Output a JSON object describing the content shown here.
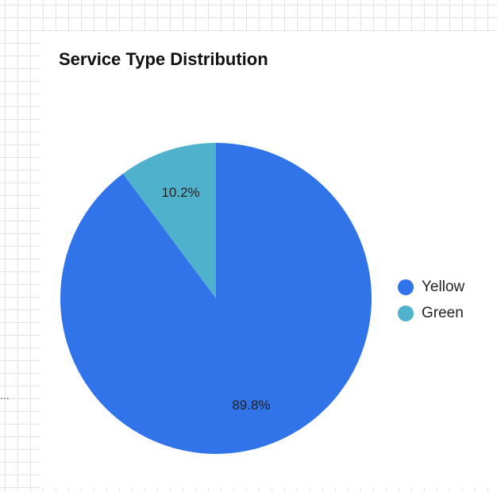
{
  "side_fragment": "...",
  "chart_data": {
    "type": "pie",
    "title": "Service Type Distribution",
    "categories": [
      "Yellow",
      "Green"
    ],
    "values": [
      89.8,
      10.2
    ],
    "labels": [
      "89.8%",
      "10.2%"
    ],
    "colors": [
      "#3173e9",
      "#4fb1cb"
    ],
    "legend_position": "right",
    "start_angle": "12 o'clock, counter-clockwise"
  }
}
